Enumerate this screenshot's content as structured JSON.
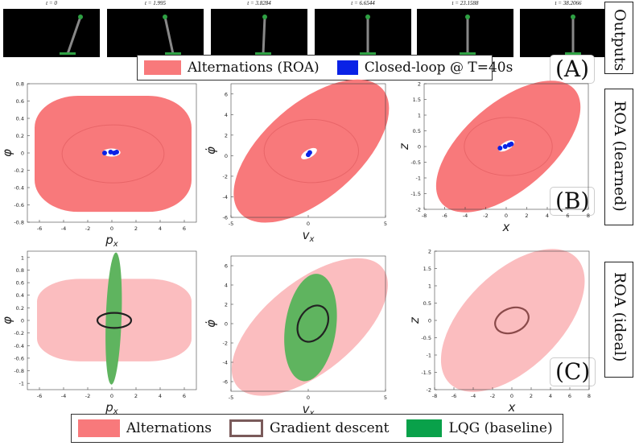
{
  "frames": [
    {
      "label": "t = 0"
    },
    {
      "label": "t = 1.995"
    },
    {
      "label": "t = 3.8284"
    },
    {
      "label": "t = 6.6544"
    },
    {
      "label": "t = 23.1588"
    },
    {
      "label": "t = 38.2066"
    }
  ],
  "side_labels": {
    "outputs": "Outputs",
    "roa_learned": "ROA (learned)",
    "roa_ideal": "ROA (ideal)"
  },
  "panel_letters": {
    "a": "(A)",
    "b": "(B)",
    "c": "(C)"
  },
  "top_legend": {
    "alternations_roa": "Alternations (ROA)",
    "closed_loop": "Closed-loop @ T=40s"
  },
  "bottom_legend": {
    "alternations": "Alternations",
    "gradient_descent": "Gradient descent",
    "lqg": "LQG (baseline)"
  },
  "colors": {
    "alternations": "#f8797b",
    "alternations_light": "#fbbdbf",
    "closed_loop": "#0a22e6",
    "gradient_descent": "#7a5a5a",
    "lqg": "#5fb45f"
  },
  "chart_data": [
    {
      "type": "region",
      "row": "learned",
      "title": "",
      "xlabel": "p_x",
      "ylabel": "φ",
      "xlim": [
        -7,
        7
      ],
      "ylim": [
        -0.8,
        0.8
      ],
      "xticks": [
        "-6",
        "-4",
        "-2",
        "0",
        "2",
        "4",
        "6"
      ],
      "yticks": [
        "0.8",
        "0.6",
        "0.4",
        "0.2",
        "0",
        "-0.2",
        "-0.4",
        "-0.6",
        "-0.8"
      ],
      "roa_region": {
        "shape": "rounded",
        "x_extent": [
          -6.4,
          6.6
        ],
        "y_extent": [
          -0.68,
          0.66
        ]
      },
      "closed_loop_points": [
        [
          -0.6,
          0.0
        ],
        [
          -0.1,
          0.01
        ],
        [
          0.2,
          0.0
        ],
        [
          0.4,
          0.01
        ]
      ]
    },
    {
      "type": "region",
      "row": "learned",
      "xlabel": "v_x",
      "ylabel": "φ̇",
      "xlim": [
        -5,
        5
      ],
      "ylim": [
        -6,
        7
      ],
      "xticks": [
        "-5",
        "0",
        "5"
      ],
      "yticks": [
        "6",
        "4",
        "2",
        "0",
        "-2",
        "-4",
        "-6"
      ],
      "roa_region": {
        "shape": "tilted",
        "x_extent": [
          -4.5,
          4.9
        ],
        "y_extent": [
          -5.7,
          6.6
        ]
      },
      "closed_loop_points": [
        [
          0.0,
          0.1
        ],
        [
          0.1,
          0.3
        ]
      ]
    },
    {
      "type": "region",
      "row": "learned",
      "xlabel": "x",
      "ylabel": "z",
      "xlim": [
        -8,
        8
      ],
      "ylim": [
        -2,
        2
      ],
      "xticks": [
        "-8",
        "-6",
        "-4",
        "-2",
        "0",
        "2",
        "4",
        "6",
        "8"
      ],
      "yticks": [
        "2",
        "1.5",
        "1",
        "0.5",
        "0",
        "-0.5",
        "-1",
        "-1.5",
        "-2"
      ],
      "roa_region": {
        "shape": "tilted",
        "x_extent": [
          -6.4,
          6.8
        ],
        "y_extent": [
          -1.85,
          1.85
        ]
      },
      "closed_loop_points": [
        [
          -0.6,
          -0.05
        ],
        [
          -0.1,
          0.0
        ],
        [
          0.3,
          0.05
        ],
        [
          0.5,
          0.08
        ]
      ]
    },
    {
      "type": "region",
      "row": "ideal",
      "xlabel": "p_x",
      "ylabel": "φ",
      "xlim": [
        -7,
        7
      ],
      "ylim": [
        -1.1,
        1.1
      ],
      "xticks": [
        "-6",
        "-4",
        "-2",
        "0",
        "2",
        "4",
        "6"
      ],
      "yticks": [
        "1",
        "0.8",
        "0.6",
        "0.4",
        "0.2",
        "0",
        "-0.2",
        "-0.4",
        "-0.6",
        "-0.8",
        "-1"
      ],
      "alternations_region": {
        "x_extent": [
          -6.2,
          6.6
        ],
        "y_extent": [
          -0.65,
          0.66
        ]
      },
      "gradient_descent": {
        "center": [
          0.2,
          0.0
        ],
        "rx": 1.4,
        "ry": 0.12
      },
      "lqg_region": {
        "x_extent": [
          -0.3,
          0.6
        ],
        "y_extent": [
          -1.02,
          1.08
        ]
      }
    },
    {
      "type": "region",
      "row": "ideal",
      "xlabel": "v_x",
      "ylabel": "φ̇",
      "xlim": [
        -5,
        5
      ],
      "ylim": [
        -7,
        7
      ],
      "xticks": [
        "-5",
        "0",
        "5"
      ],
      "yticks": [
        "6",
        "4",
        "2",
        "0",
        "-2",
        "-4",
        "-6"
      ],
      "alternations_region": {
        "x_extent": [
          -4.7,
          4.9
        ],
        "y_extent": [
          -6.6,
          5.9
        ]
      },
      "gradient_descent": {
        "center": [
          0.3,
          0.0
        ],
        "rx": 0.9,
        "ry": 2.0
      },
      "lqg_region": {
        "x_extent": [
          -1.5,
          1.8
        ],
        "y_extent": [
          -6.0,
          5.2
        ]
      }
    },
    {
      "type": "region",
      "row": "ideal",
      "xlabel": "x",
      "ylabel": "z",
      "xlim": [
        -8,
        8
      ],
      "ylim": [
        -2,
        2
      ],
      "xticks": [
        "-8",
        "-6",
        "-4",
        "-2",
        "0",
        "2",
        "4",
        "6",
        "8"
      ],
      "yticks": [
        "2",
        "1.5",
        "1",
        "0.5",
        "0",
        "-0.5",
        "-1",
        "-1.5",
        "-2"
      ],
      "alternations_region": {
        "x_extent": [
          -6.6,
          6.8
        ],
        "y_extent": [
          -1.85,
          1.85
        ]
      },
      "gradient_descent": {
        "center": [
          0.0,
          0.0
        ],
        "rx": 1.8,
        "ry": 0.35
      }
    }
  ]
}
